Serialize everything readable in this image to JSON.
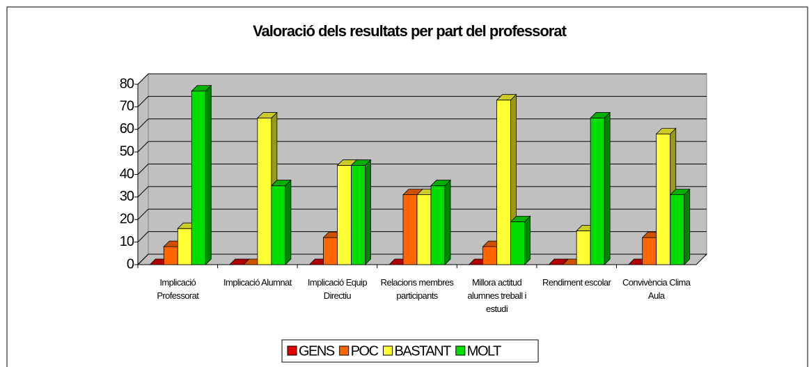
{
  "chart_data": {
    "type": "bar3d",
    "title": "Valoració dels resultats per part del professorat",
    "categories": [
      "Implicació Professorat",
      "Implicació Alumnat",
      "Implicació Equip Directiu",
      "Relacions membres participants",
      "Millora actitud alumnes treball i estudi",
      "Rendiment escolar",
      "Convivència Clima Aula"
    ],
    "series": [
      {
        "name": "GENS",
        "color": "#e00000",
        "values": [
          0,
          0,
          0,
          0,
          0,
          0,
          0
        ]
      },
      {
        "name": "POC",
        "color": "#ff6600",
        "values": [
          8,
          0,
          12,
          31,
          8,
          0,
          12
        ]
      },
      {
        "name": "BASTANT",
        "color": "#ffff33",
        "values": [
          16,
          65,
          44,
          31,
          73,
          15,
          58
        ]
      },
      {
        "name": "MOLT",
        "color": "#00dd00",
        "values": [
          77,
          35,
          44,
          35,
          19,
          65,
          31
        ]
      }
    ],
    "ylim": [
      0,
      80
    ],
    "yticks": [
      0,
      10,
      20,
      30,
      40,
      50,
      60,
      70,
      80
    ],
    "grid": true,
    "legend": "bottom"
  }
}
